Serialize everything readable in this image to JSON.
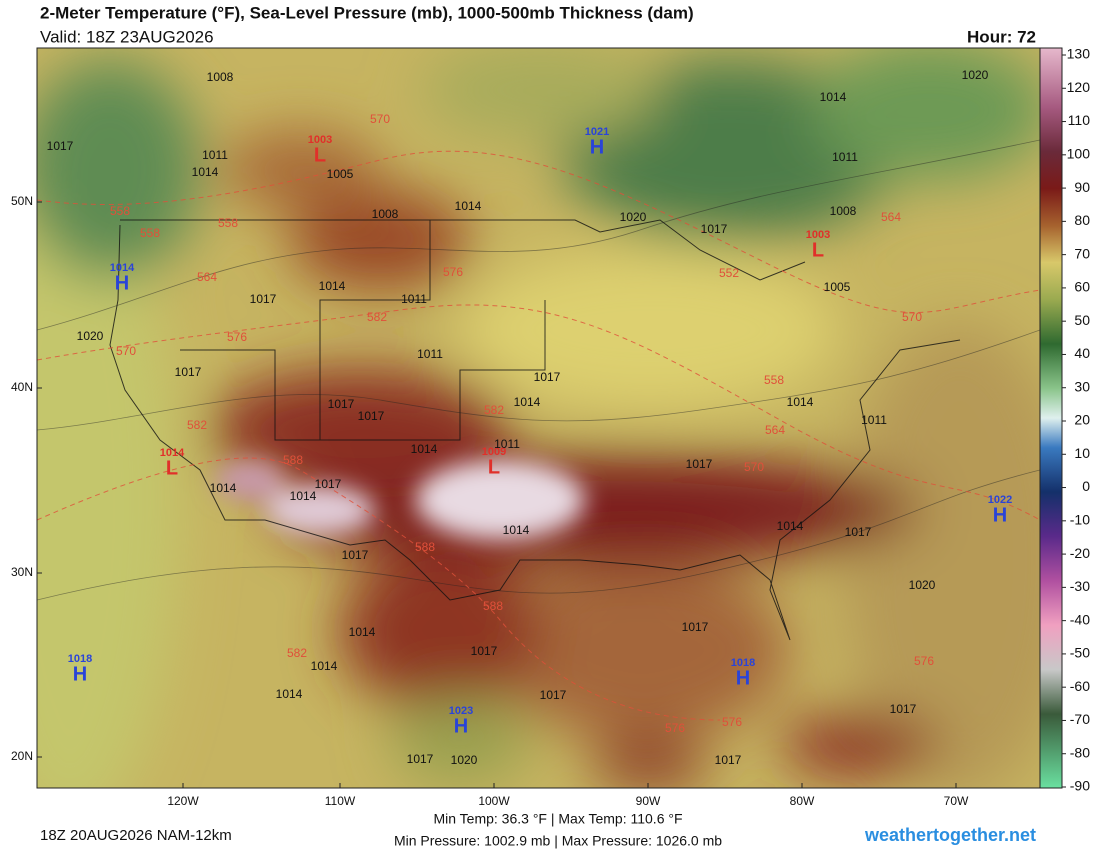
{
  "header": {
    "title": "2-Meter Temperature (°F), Sea-Level Pressure (mb), 1000-500mb Thickness (dam)",
    "valid": "Valid: 18Z 23AUG2026",
    "hour": "Hour: 72"
  },
  "colorbar": {
    "ticks": [
      130,
      120,
      110,
      100,
      90,
      80,
      70,
      60,
      50,
      40,
      30,
      20,
      10,
      0,
      -10,
      -20,
      -30,
      -40,
      -50,
      -60,
      -70,
      -80,
      -90
    ]
  },
  "axes": {
    "lat_labels": [
      "50N",
      "40N",
      "30N",
      "20N"
    ],
    "lon_labels": [
      "120W",
      "110W",
      "100W",
      "90W",
      "80W",
      "70W"
    ]
  },
  "centers": [
    {
      "symbol": "L",
      "value": 1003
    },
    {
      "symbol": "H",
      "value": 1021
    },
    {
      "symbol": "L",
      "value": 1003
    },
    {
      "symbol": "H",
      "value": 1014
    },
    {
      "symbol": "L",
      "value": 1014
    },
    {
      "symbol": "L",
      "value": 1009
    },
    {
      "symbol": "H",
      "value": 1022
    },
    {
      "symbol": "H",
      "value": 1018
    },
    {
      "symbol": "H",
      "value": 1018
    },
    {
      "symbol": "H",
      "value": 1023
    }
  ],
  "pressure_labels": [
    1008,
    1011,
    1014,
    1005,
    1008,
    1014,
    1020,
    1017,
    1014,
    1011,
    1008,
    1005,
    1020,
    1017,
    1017,
    1014,
    1011,
    1011,
    1020,
    1017,
    1017,
    1014,
    1017,
    1017,
    1011,
    1014,
    1017,
    1014,
    1011,
    1014,
    1014,
    1017,
    1014,
    1014,
    1017,
    1020,
    1017,
    1017,
    1014,
    1014,
    1014,
    1017,
    1017,
    1017,
    1017,
    1020,
    1017
  ],
  "thickness_labels": [
    570,
    558,
    558,
    558,
    564,
    576,
    582,
    576,
    570,
    582,
    582,
    588,
    564,
    570,
    558,
    552,
    564,
    570,
    588,
    588,
    582,
    576,
    576,
    576
  ],
  "footer": {
    "run": "18Z 20AUG2026 NAM-12km",
    "temp_stats": "Min Temp:  36.3 °F | Max Temp: 110.6 °F",
    "pressure_stats": "Min Pressure: 1002.9 mb | Max Pressure: 1026.0 mb",
    "site": "weathertogether.net"
  }
}
